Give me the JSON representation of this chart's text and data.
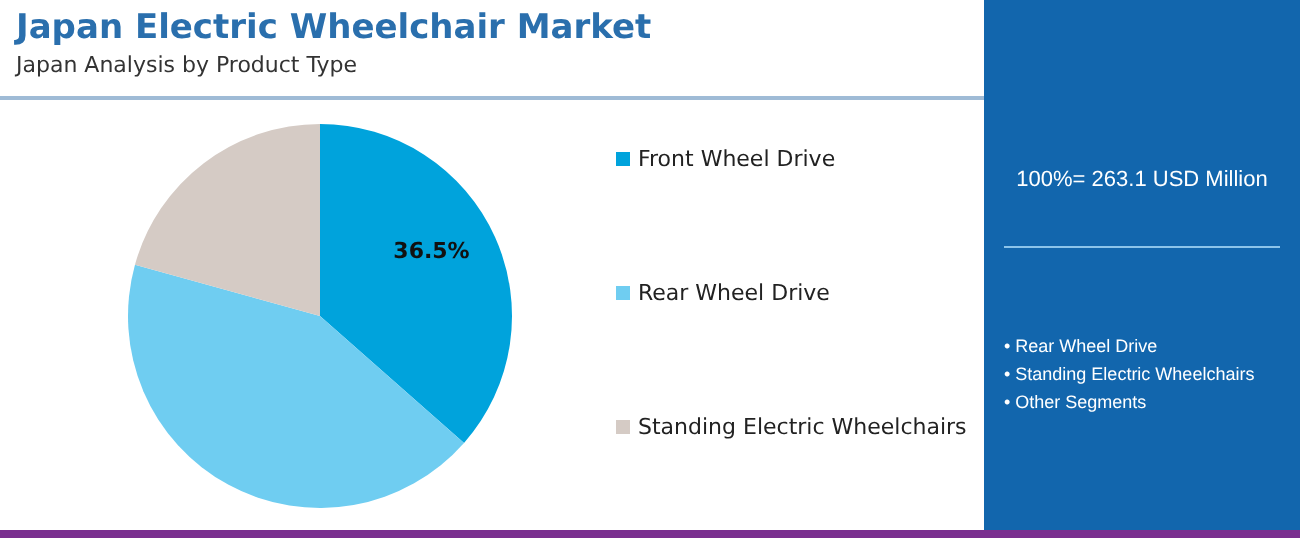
{
  "chart_data": {
    "type": "pie",
    "title": "Japan Electric Wheelchair Market",
    "subtitle": "Japan Analysis by Product Type",
    "categories": [
      "Front Wheel Drive",
      "Rear Wheel Drive",
      "Standing Electric Wheelchairs"
    ],
    "values": [
      36.5,
      42.8,
      20.7
    ],
    "colors": [
      "#00a3dc",
      "#6fcdf1",
      "#d5cbc5"
    ],
    "value_labels": [
      "36.5%",
      null,
      null
    ],
    "legend": "right",
    "annotations": [
      "100%= 263.1 USD Million",
      "• Rear Wheel Drive",
      "• Standing Electric Wheelchairs",
      "• Other Segments"
    ]
  }
}
